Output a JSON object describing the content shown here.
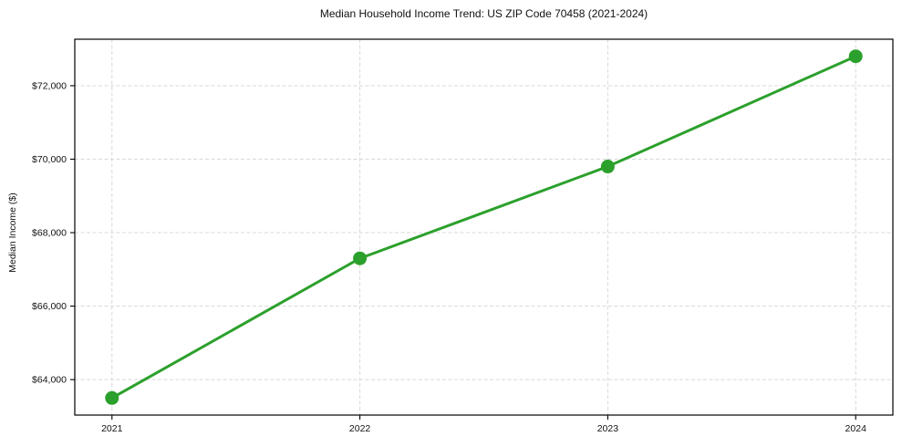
{
  "figure": {
    "background": "#ffffff"
  },
  "chart_data": {
    "type": "line",
    "title": "Median Household Income Trend: US ZIP Code 70458 (2021-2024)",
    "xlabel": "",
    "ylabel": "Median Income ($)",
    "x": [
      2021,
      2022,
      2023,
      2024
    ],
    "x_tick_labels": [
      "2021",
      "2022",
      "2023",
      "2024"
    ],
    "series": [
      {
        "name": "Median Household Income",
        "values": [
          63500,
          67300,
          69800,
          72800
        ],
        "color": "#2ca02c",
        "marker": "circle"
      }
    ],
    "yticks": [
      64000,
      66000,
      68000,
      70000,
      72000
    ],
    "y_tick_labels": [
      "$64,000",
      "$66,000",
      "$68,000",
      "$70,000",
      "$72,000"
    ],
    "xlim": [
      2020.85,
      2024.15
    ],
    "ylim": [
      63035,
      73265
    ],
    "grid": true,
    "grid_style": "dashed",
    "legend": "none",
    "line_width": 3,
    "marker_size": 7.5,
    "plot_background": "#ffffff",
    "spine_color": "#000000"
  }
}
